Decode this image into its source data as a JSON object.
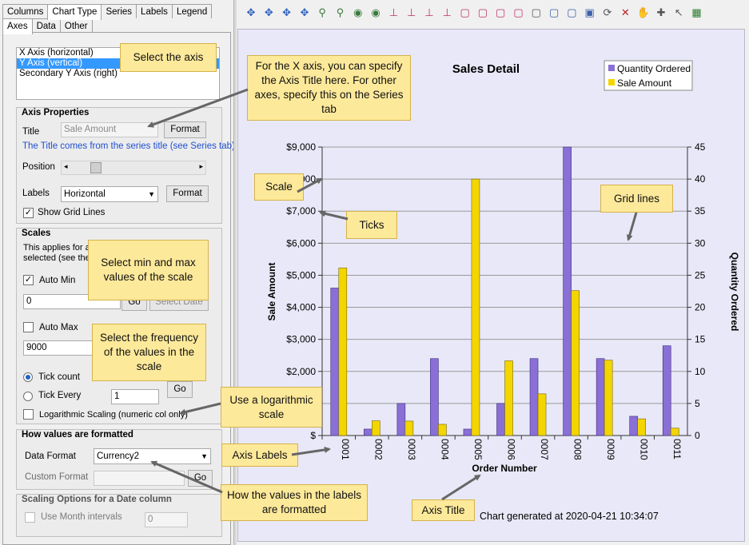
{
  "top_tabs": [
    "Columns",
    "Chart Type",
    "Series",
    "Labels",
    "Legend"
  ],
  "sub_tabs": [
    "Axes",
    "Data",
    "Other"
  ],
  "axis_list": [
    "X Axis (horizontal)",
    "Y Axis (vertical)",
    "Secondary Y Axis (right)"
  ],
  "axis_properties": {
    "group_title": "Axis Properties",
    "title_label": "Title",
    "title_value": "Sale Amount",
    "format_label": "Format",
    "hint": "The Title comes from the series title (see Series tab)",
    "position_label": "Position",
    "labels_label": "Labels",
    "labels_value": "Horizontal",
    "show_grid_label": "Show Grid Lines",
    "show_grid_checked": "✓"
  },
  "scales": {
    "group_title": "Scales",
    "desc_line1": "This applies for a",
    "desc_line2": "selected (see the",
    "auto_min_label": "Auto Min",
    "auto_min_checked": "✓",
    "min_value": "0",
    "go_label": "Go",
    "select_date_label": "Select Date",
    "auto_max_label": "Auto Max",
    "max_value": "9000",
    "tick_count_label": "Tick count",
    "tick_every_label": "Tick Every",
    "tick_every_value": "1",
    "log_label": "Logarithmic Scaling (numeric col only)"
  },
  "formatting": {
    "group_title": "How values are formatted",
    "data_format_label": "Data Format",
    "data_format_value": "Currency2",
    "custom_format_label": "Custom Format",
    "go_label": "Go"
  },
  "date_scaling": {
    "group_title": "Scaling Options for a Date column",
    "month_label": "Use Month intervals",
    "month_value": "0"
  },
  "callouts": {
    "select_axis": "Select the axis",
    "x_title": "For the X axis, you can specify the Axis Title here. For other axes, specify this on the Series tab",
    "minmax": "Select min and max values of the scale",
    "frequency": "Select the frequency of the values in the scale",
    "log": "Use a logarithmic scale",
    "value_format": "How the values in the labels are formatted",
    "scale": "Scale",
    "ticks": "Ticks",
    "grid": "Grid lines",
    "axis_labels": "Axis Labels",
    "axis_title": "Axis Title"
  },
  "footer_text": "Chart generated at 2020-04-21 10:34:07",
  "chart_data": {
    "type": "bar",
    "title": "Sales Detail",
    "xlabel": "Order Number",
    "ylabel": "Sale Amount",
    "y2label": "Quantity Ordered",
    "categories": [
      "0001",
      "0002",
      "0003",
      "0004",
      "0005",
      "0006",
      "0007",
      "0008",
      "0009",
      "0010",
      "0011"
    ],
    "series": [
      {
        "name": "Quantity Ordered",
        "axis": "right",
        "color": "#8a6fd6",
        "values": [
          23,
          1,
          5,
          12,
          1,
          5,
          12,
          45,
          12,
          3,
          14
        ]
      },
      {
        "name": "Sale Amount",
        "axis": "left",
        "color": "#f3d500",
        "values": [
          5230,
          460,
          450,
          350,
          8000,
          2330,
          1300,
          4520,
          2350,
          520,
          230
        ]
      }
    ],
    "ylim": [
      0,
      9000
    ],
    "y2lim": [
      0,
      45
    ],
    "yticks": [
      "$ ",
      "$1,000",
      "$2,000",
      "$3,000",
      "$4,000",
      "$5,000",
      "$6,000",
      "$7,000",
      "$8,000",
      "$9,000"
    ],
    "y2ticks": [
      "0",
      "5",
      "10",
      "15",
      "20",
      "25",
      "30",
      "35",
      "40",
      "45"
    ],
    "grid": true,
    "legend": "top-right"
  },
  "toolbar_icons": [
    "zoom-in-x",
    "zoom-out-x",
    "zoom-in-y",
    "zoom-out-y",
    "zoom-point",
    "zoom-point-out",
    "view",
    "view-2",
    "axis-1",
    "axis-2",
    "axis-3",
    "axis-4",
    "frame-1",
    "frame-2",
    "frame-3",
    "frame-4",
    "frame-5",
    "frame-6",
    "frame-7",
    "frame-8",
    "rotate",
    "clear",
    "hand",
    "zoom-add",
    "pointer",
    "export"
  ]
}
